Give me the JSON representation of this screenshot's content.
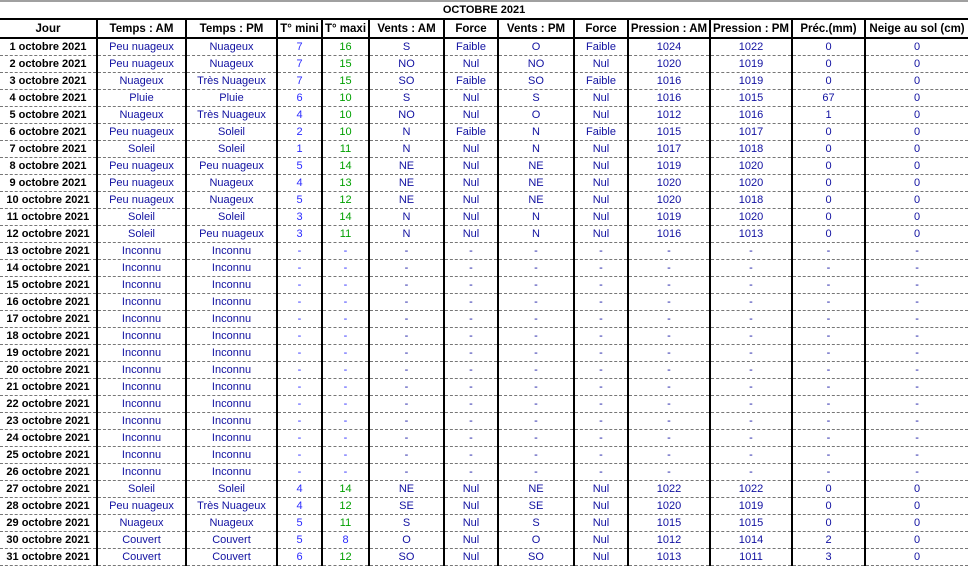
{
  "title": "OCTOBRE  2021",
  "columns": [
    "Jour",
    "Temps : AM",
    "Temps : PM",
    "T° mini",
    "T° maxi",
    "Vents : AM",
    "Force",
    "Vents : PM",
    "Force",
    "Pression : AM",
    "Pression : PM",
    "Préc.(mm)",
    "Neige au sol (cm)"
  ],
  "colors": {
    "text": "#1010a0",
    "tmin": "#2a2aff",
    "tmax_warm": "#00a000",
    "tmax_cold": "#2a2aff",
    "date": "#000000"
  },
  "rows": [
    [
      "1 octobre 2021",
      "Peu nuageux",
      "Nuageux",
      "7",
      "16",
      "S",
      "Faible",
      "O",
      "Faible",
      "1024",
      "1022",
      "0",
      "0"
    ],
    [
      "2 octobre 2021",
      "Peu nuageux",
      "Nuageux",
      "7",
      "15",
      "NO",
      "Nul",
      "NO",
      "Nul",
      "1020",
      "1019",
      "0",
      "0"
    ],
    [
      "3 octobre 2021",
      "Nuageux",
      "Très Nuageux",
      "7",
      "15",
      "SO",
      "Faible",
      "SO",
      "Faible",
      "1016",
      "1019",
      "0",
      "0"
    ],
    [
      "4 octobre 2021",
      "Pluie",
      "Pluie",
      "6",
      "10",
      "S",
      "Nul",
      "S",
      "Nul",
      "1016",
      "1015",
      "67",
      "0"
    ],
    [
      "5 octobre 2021",
      "Nuageux",
      "Très Nuageux",
      "4",
      "10",
      "NO",
      "Nul",
      "O",
      "Nul",
      "1012",
      "1016",
      "1",
      "0"
    ],
    [
      "6 octobre 2021",
      "Peu nuageux",
      "Soleil",
      "2",
      "10",
      "N",
      "Faible",
      "N",
      "Faible",
      "1015",
      "1017",
      "0",
      "0"
    ],
    [
      "7 octobre 2021",
      "Soleil",
      "Soleil",
      "1",
      "11",
      "N",
      "Nul",
      "N",
      "Nul",
      "1017",
      "1018",
      "0",
      "0"
    ],
    [
      "8 octobre 2021",
      "Peu nuageux",
      "Peu nuageux",
      "5",
      "14",
      "NE",
      "Nul",
      "NE",
      "Nul",
      "1019",
      "1020",
      "0",
      "0"
    ],
    [
      "9 octobre 2021",
      "Peu nuageux",
      "Nuageux",
      "4",
      "13",
      "NE",
      "Nul",
      "NE",
      "Nul",
      "1020",
      "1020",
      "0",
      "0"
    ],
    [
      "10 octobre 2021",
      "Peu nuageux",
      "Nuageux",
      "5",
      "12",
      "NE",
      "Nul",
      "NE",
      "Nul",
      "1020",
      "1018",
      "0",
      "0"
    ],
    [
      "11 octobre 2021",
      "Soleil",
      "Soleil",
      "3",
      "14",
      "N",
      "Nul",
      "N",
      "Nul",
      "1019",
      "1020",
      "0",
      "0"
    ],
    [
      "12 octobre 2021",
      "Soleil",
      "Peu nuageux",
      "3",
      "11",
      "N",
      "Nul",
      "N",
      "Nul",
      "1016",
      "1013",
      "0",
      "0"
    ],
    [
      "13 octobre 2021",
      "Inconnu",
      "Inconnu",
      "-",
      "-",
      "-",
      "-",
      "-",
      "-",
      "-",
      "-",
      "-",
      "-"
    ],
    [
      "14 octobre 2021",
      "Inconnu",
      "Inconnu",
      "-",
      "-",
      "-",
      "-",
      "-",
      "-",
      "-",
      "-",
      "-",
      "-"
    ],
    [
      "15 octobre 2021",
      "Inconnu",
      "Inconnu",
      "-",
      "-",
      "-",
      "-",
      "-",
      "-",
      "-",
      "-",
      "-",
      "-"
    ],
    [
      "16 octobre 2021",
      "Inconnu",
      "Inconnu",
      "-",
      "-",
      "-",
      "-",
      "-",
      "-",
      "-",
      "-",
      "-",
      "-"
    ],
    [
      "17 octobre 2021",
      "Inconnu",
      "Inconnu",
      "-",
      "-",
      "-",
      "-",
      "-",
      "-",
      "-",
      "-",
      "-",
      "-"
    ],
    [
      "18 octobre 2021",
      "Inconnu",
      "Inconnu",
      "-",
      "-",
      "-",
      "-",
      "-",
      "-",
      "-",
      "-",
      "-",
      "-"
    ],
    [
      "19 octobre 2021",
      "Inconnu",
      "Inconnu",
      "-",
      "-",
      "-",
      "-",
      "-",
      "-",
      "-",
      "-",
      "-",
      "-"
    ],
    [
      "20 octobre 2021",
      "Inconnu",
      "Inconnu",
      "-",
      "-",
      "-",
      "-",
      "-",
      "-",
      "-",
      "-",
      "-",
      "-"
    ],
    [
      "21 octobre 2021",
      "Inconnu",
      "Inconnu",
      "-",
      "-",
      "-",
      "-",
      "-",
      "-",
      "-",
      "-",
      "-",
      "-"
    ],
    [
      "22 octobre 2021",
      "Inconnu",
      "Inconnu",
      "-",
      "-",
      "-",
      "-",
      "-",
      "-",
      "-",
      "-",
      "-",
      "-"
    ],
    [
      "23 octobre 2021",
      "Inconnu",
      "Inconnu",
      "-",
      "-",
      "-",
      "-",
      "-",
      "-",
      "-",
      "-",
      "-",
      "-"
    ],
    [
      "24 octobre 2021",
      "Inconnu",
      "Inconnu",
      "-",
      "-",
      "-",
      "-",
      "-",
      "-",
      "-",
      "-",
      "-",
      "-"
    ],
    [
      "25 octobre 2021",
      "Inconnu",
      "Inconnu",
      "-",
      "-",
      "-",
      "-",
      "-",
      "-",
      "-",
      "-",
      "-",
      "-"
    ],
    [
      "26 octobre 2021",
      "Inconnu",
      "Inconnu",
      "-",
      "-",
      "-",
      "-",
      "-",
      "-",
      "-",
      "-",
      "-",
      "-"
    ],
    [
      "27 octobre 2021",
      "Soleil",
      "Soleil",
      "4",
      "14",
      "NE",
      "Nul",
      "NE",
      "Nul",
      "1022",
      "1022",
      "0",
      "0"
    ],
    [
      "28 octobre 2021",
      "Peu nuageux",
      "Très Nuageux",
      "4",
      "12",
      "SE",
      "Nul",
      "SE",
      "Nul",
      "1020",
      "1019",
      "0",
      "0"
    ],
    [
      "29 octobre 2021",
      "Nuageux",
      "Nuageux",
      "5",
      "11",
      "S",
      "Nul",
      "S",
      "Nul",
      "1015",
      "1015",
      "0",
      "0"
    ],
    [
      "30 octobre 2021",
      "Couvert",
      "Couvert",
      "5",
      "8",
      "O",
      "Nul",
      "O",
      "Nul",
      "1012",
      "1014",
      "2",
      "0"
    ],
    [
      "31 octobre 2021",
      "Couvert",
      "Couvert",
      "6",
      "12",
      "SO",
      "Nul",
      "SO",
      "Nul",
      "1013",
      "1011",
      "3",
      "0"
    ]
  ]
}
